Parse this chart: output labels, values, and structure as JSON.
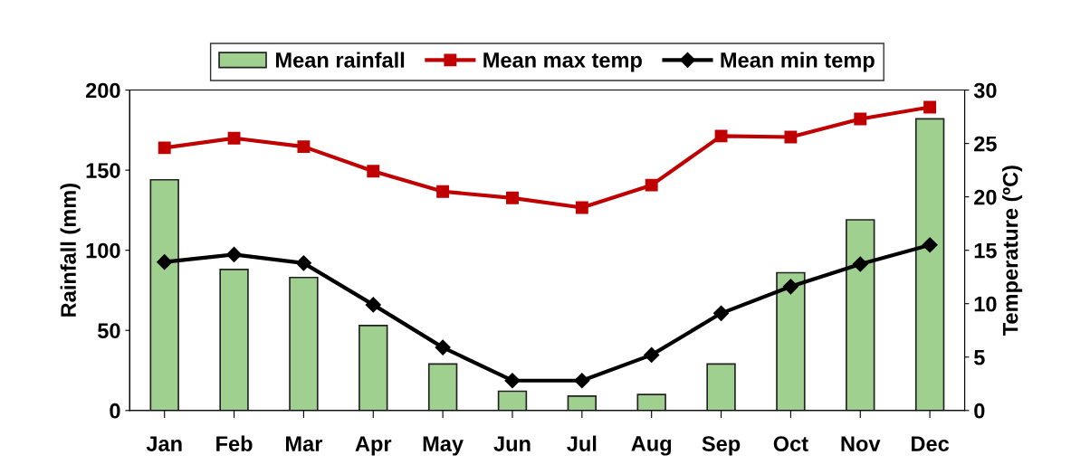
{
  "chart_data": {
    "type": "bar",
    "categories": [
      "Jan",
      "Feb",
      "Mar",
      "Apr",
      "May",
      "Jun",
      "Jul",
      "Aug",
      "Sep",
      "Oct",
      "Nov",
      "Dec"
    ],
    "ylabel": "Rainfall (mm)",
    "y2label": "Temperature (ºC)",
    "ylim": [
      0,
      200
    ],
    "yticks": [
      0,
      50,
      100,
      150,
      200
    ],
    "y2lim": [
      0,
      30
    ],
    "y2ticks": [
      0,
      5,
      10,
      15,
      20,
      25,
      30
    ],
    "legend": "top",
    "grid": false,
    "series": [
      {
        "name": "Mean rainfall",
        "color": "#9fd08f",
        "values": [
          144,
          88,
          83,
          53,
          29,
          12,
          9,
          10,
          29,
          86,
          119,
          182
        ]
      },
      {
        "name": "Mean max temp",
        "type": "line",
        "axis": "y2",
        "color": "#c00000",
        "marker": "square",
        "values": [
          24.6,
          25.5,
          24.7,
          22.4,
          20.5,
          19.9,
          19.0,
          21.1,
          25.7,
          25.6,
          27.3,
          28.4
        ]
      },
      {
        "name": "Mean min temp",
        "type": "line",
        "axis": "y2",
        "color": "#000000",
        "marker": "diamond",
        "values": [
          13.9,
          14.6,
          13.8,
          9.9,
          5.9,
          2.8,
          2.8,
          5.2,
          9.1,
          11.6,
          13.7,
          15.5
        ]
      }
    ]
  }
}
